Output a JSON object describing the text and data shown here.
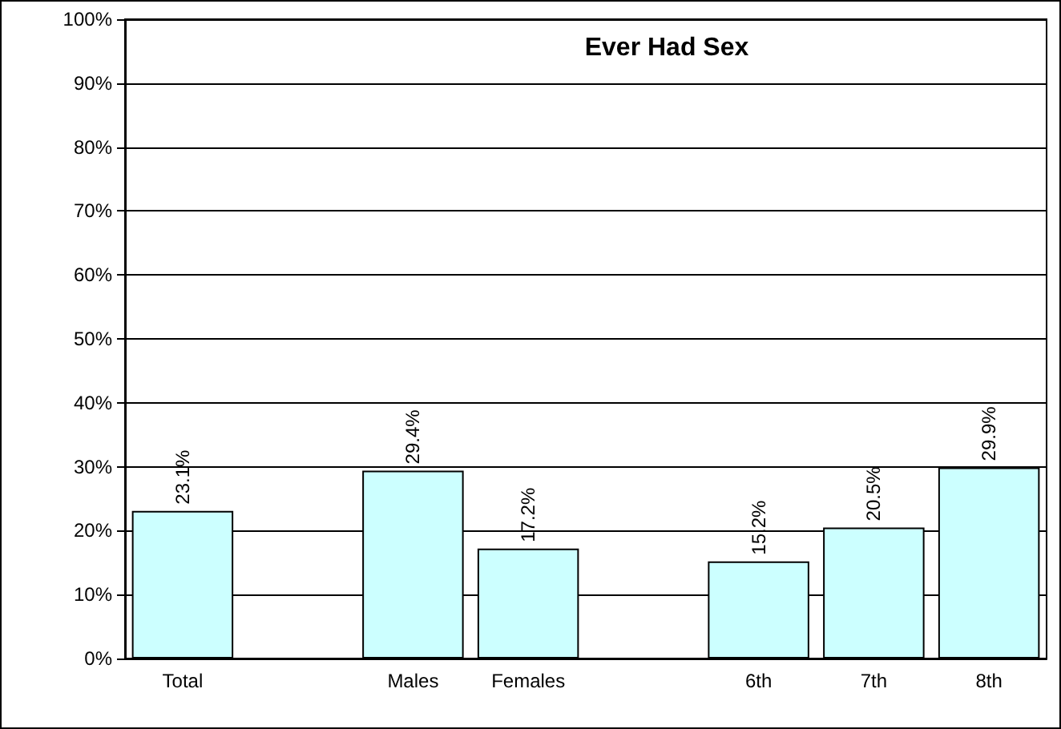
{
  "chart_data": {
    "type": "bar",
    "title": "Ever Had Sex",
    "categories": [
      "Total",
      null,
      "Males",
      "Females",
      null,
      "6th",
      "7th",
      "8th"
    ],
    "values": [
      23.1,
      null,
      29.4,
      17.2,
      null,
      15.2,
      20.5,
      29.9
    ],
    "value_labels": [
      "23.1%",
      null,
      "29.4%",
      "17.2%",
      null,
      "15.2%",
      "20.5%",
      "29.9%"
    ],
    "color": "#ccffff",
    "ylim": [
      0,
      100
    ],
    "yticks": [
      {
        "value": 0,
        "label": "0%"
      },
      {
        "value": 10,
        "label": "10%"
      },
      {
        "value": 20,
        "label": "20%"
      },
      {
        "value": 30,
        "label": "30%"
      },
      {
        "value": 40,
        "label": "40%"
      },
      {
        "value": 50,
        "label": "50%"
      },
      {
        "value": 60,
        "label": "60%"
      },
      {
        "value": 70,
        "label": "70%"
      },
      {
        "value": 80,
        "label": "80%"
      },
      {
        "value": 90,
        "label": "90%"
      },
      {
        "value": 100,
        "label": "100%"
      }
    ],
    "grid": "y"
  }
}
